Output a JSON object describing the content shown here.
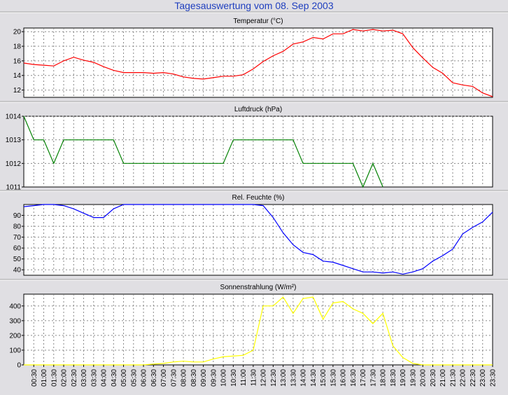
{
  "page": {
    "title": "Tagesauswertung vom 08. Sep 2003"
  },
  "colors": {
    "background": "#e0dfe3",
    "plot_background": "#ffffff",
    "grid": "#888888",
    "title_blue": "#1f3fbf"
  },
  "chart_data": [
    {
      "type": "line",
      "title": "Temperatur (°C)",
      "color": "#ff0000",
      "ylim": [
        11,
        20.5
      ],
      "yticks": [
        12,
        14,
        16,
        18,
        20
      ],
      "grid": true,
      "x": [
        0,
        0.5,
        1,
        1.5,
        2,
        2.5,
        3,
        3.5,
        4,
        4.5,
        5,
        5.5,
        6,
        6.5,
        7,
        7.5,
        8,
        8.5,
        9,
        9.5,
        10,
        10.5,
        11,
        11.5,
        12,
        12.5,
        13,
        13.5,
        14,
        14.5,
        15,
        15.5,
        16,
        16.5,
        17,
        17.5,
        18,
        18.5,
        19,
        19.5,
        20,
        20.5,
        21,
        21.5,
        22,
        22.5,
        23,
        23.5
      ],
      "values": [
        15.7,
        15.5,
        15.4,
        15.3,
        16.0,
        16.5,
        16.1,
        15.8,
        15.2,
        14.7,
        14.4,
        14.4,
        14.4,
        14.3,
        14.4,
        14.2,
        13.8,
        13.6,
        13.5,
        13.7,
        13.9,
        13.9,
        14.1,
        14.9,
        15.9,
        16.7,
        17.3,
        18.3,
        18.6,
        19.2,
        19.0,
        19.7,
        19.7,
        20.3,
        20.1,
        20.3,
        20.1,
        20.2,
        19.7,
        17.8,
        16.4,
        15.1,
        14.3,
        13.0,
        12.7,
        12.5,
        11.6,
        11.1
      ]
    },
    {
      "type": "line",
      "title": "Luftdruck (hPa)",
      "color": "#008000",
      "ylim": [
        1011,
        1014
      ],
      "yticks": [
        1011,
        1012,
        1013,
        1014
      ],
      "grid": true,
      "x": [
        0,
        0.5,
        1,
        1.5,
        2,
        2.5,
        3,
        3.5,
        4,
        4.5,
        5,
        5.5,
        6,
        6.5,
        7,
        7.5,
        8,
        8.5,
        9,
        9.5,
        10,
        10.5,
        11,
        11.5,
        12,
        12.5,
        13,
        13.5,
        14,
        14.5,
        15,
        15.5,
        16,
        16.5,
        17,
        17.5,
        18
      ],
      "values": [
        1014,
        1013,
        1013,
        1012,
        1013,
        1013,
        1013,
        1013,
        1013,
        1013,
        1012,
        1012,
        1012,
        1012,
        1012,
        1012,
        1012,
        1012,
        1012,
        1012,
        1012,
        1013,
        1013,
        1013,
        1013,
        1013,
        1013,
        1013,
        1012,
        1012,
        1012,
        1012,
        1012,
        1012,
        1011,
        1012,
        1011
      ]
    },
    {
      "type": "line",
      "title": "Rel. Feuchte (%)",
      "color": "#0000ff",
      "ylim": [
        35,
        100
      ],
      "yticks": [
        40,
        50,
        60,
        70,
        80,
        90
      ],
      "grid": true,
      "x": [
        0,
        0.5,
        1,
        1.5,
        2,
        2.5,
        3,
        3.5,
        4,
        4.5,
        5,
        5.5,
        6,
        6.5,
        7,
        7.5,
        8,
        8.5,
        9,
        9.5,
        10,
        10.5,
        11,
        11.5,
        12,
        12.5,
        13,
        13.5,
        14,
        14.5,
        15,
        15.5,
        16,
        16.5,
        17,
        17.5,
        18,
        18.5,
        19,
        19.5,
        20,
        20.5,
        21,
        21.5,
        22,
        22.5,
        23,
        23.5
      ],
      "values": [
        98,
        99,
        100,
        100,
        99,
        96,
        92,
        88,
        88,
        96,
        100,
        100,
        100,
        100,
        100,
        100,
        100,
        100,
        100,
        100,
        100,
        100,
        100,
        100,
        99,
        88,
        74,
        63,
        56,
        54,
        48,
        47,
        44,
        41,
        38,
        38,
        37,
        38,
        36,
        38,
        41,
        48,
        53,
        59,
        73,
        79,
        84,
        93
      ]
    },
    {
      "type": "area",
      "title": "Sonnenstrahlung (W/m²)",
      "color": "#ffff00",
      "ylim": [
        0,
        480
      ],
      "yticks": [
        0,
        100,
        200,
        300,
        400
      ],
      "grid": true,
      "x": [
        0,
        0.5,
        1,
        1.5,
        2,
        2.5,
        3,
        3.5,
        4,
        4.5,
        5,
        5.5,
        6,
        6.5,
        7,
        7.5,
        8,
        8.5,
        9,
        9.5,
        10,
        10.5,
        11,
        11.5,
        12,
        12.5,
        13,
        13.5,
        14,
        14.5,
        15,
        15.5,
        16,
        16.5,
        17,
        17.5,
        18,
        18.5,
        19,
        19.5,
        20,
        20.5,
        21,
        21.5,
        22,
        22.5,
        23,
        23.5
      ],
      "values": [
        0,
        0,
        0,
        0,
        0,
        0,
        0,
        0,
        0,
        0,
        0,
        0,
        0,
        5,
        10,
        20,
        25,
        20,
        20,
        40,
        55,
        60,
        65,
        100,
        400,
        400,
        460,
        350,
        450,
        460,
        310,
        420,
        430,
        380,
        350,
        280,
        350,
        130,
        50,
        10,
        0,
        0,
        0,
        0,
        0,
        0,
        0,
        0
      ],
      "x_tick_labels": [
        "00:30",
        "01:00",
        "01:30",
        "02:00",
        "02:30",
        "03:00",
        "03:30",
        "04:00",
        "04:30",
        "05:00",
        "05:30",
        "06:00",
        "06:30",
        "07:00",
        "07:30",
        "08:00",
        "08:30",
        "09:00",
        "09:30",
        "10:00",
        "10:30",
        "11:00",
        "11:30",
        "12:00",
        "12:30",
        "13:00",
        "13:30",
        "14:00",
        "14:30",
        "15:00",
        "15:30",
        "16:00",
        "16:30",
        "17:00",
        "17:30",
        "18:00",
        "18:30",
        "19:00",
        "19:30",
        "20:00",
        "20:30",
        "21:00",
        "21:30",
        "22:00",
        "22:30",
        "23:00",
        "23:30"
      ]
    }
  ]
}
